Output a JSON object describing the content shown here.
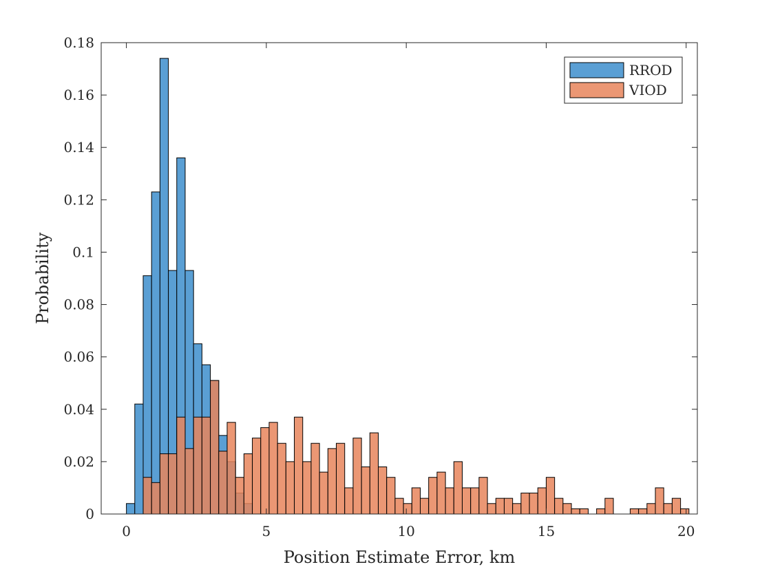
{
  "chart_data": {
    "type": "bar",
    "subtype": "overlapping-histogram",
    "title": "",
    "xlabel": "Position Estimate Error, km",
    "ylabel": "Probability",
    "xlim": [
      -0.9,
      20.4
    ],
    "ylim": [
      0,
      0.18
    ],
    "xticks": [
      0,
      5,
      10,
      15,
      20
    ],
    "xtick_labels": [
      "0",
      "5",
      "10",
      "15",
      "20"
    ],
    "yticks": [
      0,
      0.02,
      0.04,
      0.06,
      0.08,
      0.1,
      0.12,
      0.14,
      0.16,
      0.18
    ],
    "ytick_labels": [
      "0",
      "0.02",
      "0.04",
      "0.06",
      "0.08",
      "0.1",
      "0.12",
      "0.14",
      "0.16",
      "0.18"
    ],
    "bin_width": 0.3,
    "legend_position": "top-right",
    "series": [
      {
        "name": "RROD",
        "color": "#5a9fd4",
        "opacity": 1.0,
        "bin_start": 0.0,
        "values": [
          0.004,
          0.042,
          0.091,
          0.123,
          0.174,
          0.093,
          0.136,
          0.093,
          0.065,
          0.057,
          0.051,
          0.03,
          0.02,
          0.008,
          0.004
        ]
      },
      {
        "name": "VIOD",
        "color": "#e8855c",
        "opacity": 0.85,
        "bin_start": 0.6,
        "values": [
          0.014,
          0.012,
          0.023,
          0.023,
          0.037,
          0.025,
          0.037,
          0.037,
          0.051,
          0.024,
          0.035,
          0.014,
          0.023,
          0.029,
          0.033,
          0.035,
          0.027,
          0.02,
          0.037,
          0.02,
          0.027,
          0.016,
          0.025,
          0.027,
          0.01,
          0.029,
          0.018,
          0.031,
          0.018,
          0.014,
          0.006,
          0.004,
          0.01,
          0.006,
          0.014,
          0.016,
          0.01,
          0.02,
          0.01,
          0.01,
          0.014,
          0.004,
          0.006,
          0.006,
          0.004,
          0.008,
          0.008,
          0.01,
          0.014,
          0.006,
          0.004,
          0.002,
          0.002,
          0,
          0.002,
          0.006,
          0,
          0,
          0.002,
          0.002,
          0.004,
          0.01,
          0.004,
          0.006,
          0.002
        ]
      }
    ]
  }
}
